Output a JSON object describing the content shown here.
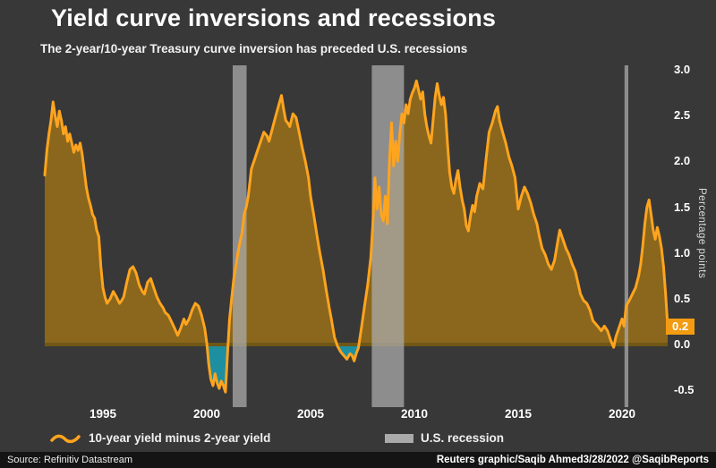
{
  "header": {
    "title": "Yield curve inversions and recessions",
    "subtitle": "The 2-year/10-year Treasury curve inversion has preceded U.S. recessions"
  },
  "footer": {
    "source": "Source: Refinitiv Datastream",
    "credit": "Reuters graphic/Saqib Ahmed3/28/2022 @SaqibReports"
  },
  "legend": {
    "series_label": "10-year yield minus 2-year yield",
    "recession_label": "U.S. recession"
  },
  "annotation": {
    "last_value_label": "0.2"
  },
  "colors": {
    "background": "#383838",
    "footer_bg": "#141414",
    "line": "#FFA41E",
    "area_positive": "#8a671c",
    "area_negative": "#1d8fa0",
    "zero_line": "#6f5716",
    "recession_band": "#aaaaaa",
    "badge_bg": "#F39C12",
    "text": "#ffffff"
  },
  "chart_data": {
    "type": "area",
    "title": "Yield curve inversions and recessions",
    "subtitle": "The 2-year/10-year Treasury curve inversion has preceded U.S. recessions",
    "xlabel": "",
    "ylabel": "Percentage points",
    "ylim": [
      -0.5,
      3.0
    ],
    "xlim": [
      1992.2,
      2022.3
    ],
    "grid": false,
    "legend_position": "bottom",
    "y_ticks": [
      3.0,
      2.5,
      2.0,
      1.5,
      1.0,
      0.5,
      0.0,
      -0.5
    ],
    "y_tick_labels": [
      "3.0",
      "2.5",
      "2.0",
      "1.5",
      "1.0",
      "0.5",
      "0.0",
      "-0.5"
    ],
    "x_ticks": [
      1995,
      2000,
      2005,
      2010,
      2015,
      2020
    ],
    "recessions": [
      [
        2001.25,
        2001.92
      ],
      [
        2007.95,
        2009.5
      ],
      [
        2020.12,
        2020.3
      ]
    ],
    "last_value": 0.2,
    "series": [
      {
        "name": "10-year yield minus 2-year yield",
        "points": [
          [
            1992.2,
            1.85
          ],
          [
            1992.3,
            2.12
          ],
          [
            1992.4,
            2.3
          ],
          [
            1992.5,
            2.45
          ],
          [
            1992.6,
            2.65
          ],
          [
            1992.7,
            2.5
          ],
          [
            1992.8,
            2.38
          ],
          [
            1992.9,
            2.55
          ],
          [
            1993.0,
            2.45
          ],
          [
            1993.1,
            2.3
          ],
          [
            1993.2,
            2.38
          ],
          [
            1993.3,
            2.22
          ],
          [
            1993.4,
            2.3
          ],
          [
            1993.5,
            2.2
          ],
          [
            1993.6,
            2.1
          ],
          [
            1993.7,
            2.18
          ],
          [
            1993.8,
            2.12
          ],
          [
            1993.9,
            2.2
          ],
          [
            1994.0,
            2.08
          ],
          [
            1994.1,
            1.9
          ],
          [
            1994.2,
            1.72
          ],
          [
            1994.3,
            1.6
          ],
          [
            1994.4,
            1.52
          ],
          [
            1994.5,
            1.42
          ],
          [
            1994.6,
            1.38
          ],
          [
            1994.7,
            1.25
          ],
          [
            1994.8,
            1.18
          ],
          [
            1994.9,
            0.85
          ],
          [
            1995.0,
            0.62
          ],
          [
            1995.1,
            0.52
          ],
          [
            1995.2,
            0.45
          ],
          [
            1995.35,
            0.5
          ],
          [
            1995.5,
            0.58
          ],
          [
            1995.65,
            0.52
          ],
          [
            1995.8,
            0.45
          ],
          [
            1995.9,
            0.48
          ],
          [
            1996.0,
            0.52
          ],
          [
            1996.15,
            0.68
          ],
          [
            1996.3,
            0.82
          ],
          [
            1996.45,
            0.85
          ],
          [
            1996.6,
            0.78
          ],
          [
            1996.75,
            0.65
          ],
          [
            1996.9,
            0.58
          ],
          [
            1997.0,
            0.55
          ],
          [
            1997.15,
            0.68
          ],
          [
            1997.3,
            0.72
          ],
          [
            1997.45,
            0.62
          ],
          [
            1997.6,
            0.52
          ],
          [
            1997.75,
            0.45
          ],
          [
            1997.9,
            0.4
          ],
          [
            1998.0,
            0.35
          ],
          [
            1998.15,
            0.32
          ],
          [
            1998.3,
            0.25
          ],
          [
            1998.45,
            0.18
          ],
          [
            1998.6,
            0.1
          ],
          [
            1998.75,
            0.18
          ],
          [
            1998.9,
            0.28
          ],
          [
            1999.0,
            0.22
          ],
          [
            1999.15,
            0.28
          ],
          [
            1999.3,
            0.38
          ],
          [
            1999.45,
            0.45
          ],
          [
            1999.6,
            0.42
          ],
          [
            1999.75,
            0.32
          ],
          [
            1999.9,
            0.18
          ],
          [
            2000.0,
            0.02
          ],
          [
            2000.1,
            -0.22
          ],
          [
            2000.2,
            -0.38
          ],
          [
            2000.3,
            -0.45
          ],
          [
            2000.4,
            -0.32
          ],
          [
            2000.5,
            -0.42
          ],
          [
            2000.6,
            -0.48
          ],
          [
            2000.7,
            -0.4
          ],
          [
            2000.8,
            -0.45
          ],
          [
            2000.9,
            -0.52
          ],
          [
            2001.0,
            -0.1
          ],
          [
            2001.1,
            0.28
          ],
          [
            2001.2,
            0.5
          ],
          [
            2001.3,
            0.72
          ],
          [
            2001.4,
            0.85
          ],
          [
            2001.5,
            1.0
          ],
          [
            2001.6,
            1.12
          ],
          [
            2001.7,
            1.22
          ],
          [
            2001.8,
            1.42
          ],
          [
            2001.9,
            1.5
          ],
          [
            2002.0,
            1.62
          ],
          [
            2002.15,
            1.92
          ],
          [
            2002.3,
            2.02
          ],
          [
            2002.45,
            2.12
          ],
          [
            2002.6,
            2.22
          ],
          [
            2002.75,
            2.32
          ],
          [
            2002.9,
            2.28
          ],
          [
            2003.0,
            2.22
          ],
          [
            2003.15,
            2.35
          ],
          [
            2003.3,
            2.48
          ],
          [
            2003.45,
            2.6
          ],
          [
            2003.6,
            2.72
          ],
          [
            2003.7,
            2.58
          ],
          [
            2003.8,
            2.45
          ],
          [
            2003.9,
            2.42
          ],
          [
            2004.0,
            2.38
          ],
          [
            2004.15,
            2.52
          ],
          [
            2004.3,
            2.48
          ],
          [
            2004.45,
            2.32
          ],
          [
            2004.6,
            2.15
          ],
          [
            2004.75,
            2.0
          ],
          [
            2004.9,
            1.82
          ],
          [
            2005.0,
            1.62
          ],
          [
            2005.15,
            1.42
          ],
          [
            2005.3,
            1.2
          ],
          [
            2005.45,
            1.0
          ],
          [
            2005.6,
            0.82
          ],
          [
            2005.75,
            0.6
          ],
          [
            2005.9,
            0.4
          ],
          [
            2006.0,
            0.28
          ],
          [
            2006.15,
            0.08
          ],
          [
            2006.3,
            -0.02
          ],
          [
            2006.45,
            -0.08
          ],
          [
            2006.6,
            -0.12
          ],
          [
            2006.75,
            -0.16
          ],
          [
            2006.9,
            -0.1
          ],
          [
            2007.0,
            -0.12
          ],
          [
            2007.1,
            -0.18
          ],
          [
            2007.2,
            -0.1
          ],
          [
            2007.3,
            -0.04
          ],
          [
            2007.45,
            0.18
          ],
          [
            2007.6,
            0.42
          ],
          [
            2007.75,
            0.65
          ],
          [
            2007.9,
            0.95
          ],
          [
            2008.0,
            1.32
          ],
          [
            2008.1,
            1.82
          ],
          [
            2008.2,
            1.48
          ],
          [
            2008.3,
            1.72
          ],
          [
            2008.4,
            1.42
          ],
          [
            2008.5,
            1.35
          ],
          [
            2008.6,
            1.62
          ],
          [
            2008.7,
            1.32
          ],
          [
            2008.8,
            2.02
          ],
          [
            2008.9,
            2.42
          ],
          [
            2009.0,
            1.95
          ],
          [
            2009.1,
            2.22
          ],
          [
            2009.2,
            2.0
          ],
          [
            2009.3,
            2.32
          ],
          [
            2009.4,
            2.52
          ],
          [
            2009.5,
            2.42
          ],
          [
            2009.6,
            2.62
          ],
          [
            2009.7,
            2.52
          ],
          [
            2009.8,
            2.68
          ],
          [
            2009.9,
            2.75
          ],
          [
            2010.0,
            2.8
          ],
          [
            2010.1,
            2.88
          ],
          [
            2010.2,
            2.78
          ],
          [
            2010.3,
            2.68
          ],
          [
            2010.4,
            2.76
          ],
          [
            2010.5,
            2.52
          ],
          [
            2010.6,
            2.38
          ],
          [
            2010.7,
            2.28
          ],
          [
            2010.8,
            2.2
          ],
          [
            2010.9,
            2.45
          ],
          [
            2011.0,
            2.7
          ],
          [
            2011.1,
            2.85
          ],
          [
            2011.2,
            2.72
          ],
          [
            2011.3,
            2.62
          ],
          [
            2011.4,
            2.7
          ],
          [
            2011.5,
            2.52
          ],
          [
            2011.6,
            2.18
          ],
          [
            2011.7,
            1.88
          ],
          [
            2011.8,
            1.72
          ],
          [
            2011.9,
            1.65
          ],
          [
            2012.0,
            1.8
          ],
          [
            2012.1,
            1.9
          ],
          [
            2012.2,
            1.72
          ],
          [
            2012.3,
            1.58
          ],
          [
            2012.4,
            1.48
          ],
          [
            2012.5,
            1.3
          ],
          [
            2012.6,
            1.24
          ],
          [
            2012.7,
            1.4
          ],
          [
            2012.8,
            1.52
          ],
          [
            2012.9,
            1.45
          ],
          [
            2013.0,
            1.62
          ],
          [
            2013.15,
            1.76
          ],
          [
            2013.3,
            1.7
          ],
          [
            2013.45,
            2.02
          ],
          [
            2013.6,
            2.32
          ],
          [
            2013.75,
            2.42
          ],
          [
            2013.9,
            2.55
          ],
          [
            2014.0,
            2.6
          ],
          [
            2014.1,
            2.45
          ],
          [
            2014.25,
            2.32
          ],
          [
            2014.4,
            2.2
          ],
          [
            2014.55,
            2.05
          ],
          [
            2014.7,
            1.95
          ],
          [
            2014.85,
            1.82
          ],
          [
            2015.0,
            1.48
          ],
          [
            2015.15,
            1.62
          ],
          [
            2015.3,
            1.72
          ],
          [
            2015.45,
            1.65
          ],
          [
            2015.6,
            1.55
          ],
          [
            2015.75,
            1.42
          ],
          [
            2015.9,
            1.32
          ],
          [
            2016.0,
            1.2
          ],
          [
            2016.15,
            1.05
          ],
          [
            2016.3,
            0.98
          ],
          [
            2016.45,
            0.88
          ],
          [
            2016.6,
            0.82
          ],
          [
            2016.75,
            0.92
          ],
          [
            2016.9,
            1.12
          ],
          [
            2017.0,
            1.25
          ],
          [
            2017.15,
            1.15
          ],
          [
            2017.3,
            1.05
          ],
          [
            2017.45,
            0.98
          ],
          [
            2017.6,
            0.88
          ],
          [
            2017.75,
            0.8
          ],
          [
            2017.9,
            0.65
          ],
          [
            2018.0,
            0.55
          ],
          [
            2018.15,
            0.48
          ],
          [
            2018.3,
            0.45
          ],
          [
            2018.45,
            0.38
          ],
          [
            2018.6,
            0.26
          ],
          [
            2018.75,
            0.22
          ],
          [
            2018.9,
            0.18
          ],
          [
            2019.0,
            0.15
          ],
          [
            2019.15,
            0.2
          ],
          [
            2019.3,
            0.15
          ],
          [
            2019.45,
            0.05
          ],
          [
            2019.6,
            -0.03
          ],
          [
            2019.7,
            0.08
          ],
          [
            2019.85,
            0.18
          ],
          [
            2020.0,
            0.28
          ],
          [
            2020.1,
            0.2
          ],
          [
            2020.2,
            0.42
          ],
          [
            2020.35,
            0.48
          ],
          [
            2020.5,
            0.55
          ],
          [
            2020.65,
            0.62
          ],
          [
            2020.8,
            0.75
          ],
          [
            2020.9,
            0.88
          ],
          [
            2021.0,
            1.08
          ],
          [
            2021.1,
            1.32
          ],
          [
            2021.2,
            1.5
          ],
          [
            2021.3,
            1.58
          ],
          [
            2021.4,
            1.42
          ],
          [
            2021.5,
            1.25
          ],
          [
            2021.6,
            1.15
          ],
          [
            2021.7,
            1.28
          ],
          [
            2021.8,
            1.18
          ],
          [
            2021.9,
            1.05
          ],
          [
            2022.0,
            0.85
          ],
          [
            2022.1,
            0.55
          ],
          [
            2022.2,
            0.2
          ]
        ]
      }
    ]
  }
}
